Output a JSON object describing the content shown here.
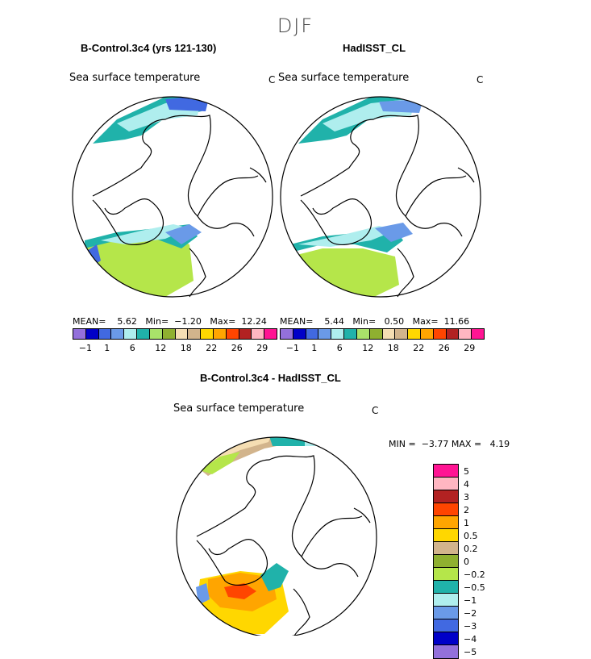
{
  "figure": {
    "season": "DJF"
  },
  "panels": [
    {
      "model": "B-Control.3c4 (yrs 121-130)",
      "var_name": "Sea surface temperature",
      "units": "C",
      "mean_label": "MEAN=",
      "mean": "5.62",
      "min_label": "Min=",
      "min": "−1.20",
      "max_label": "Max=",
      "max": "12.24"
    },
    {
      "model": "HadISST_CL",
      "var_name": "Sea surface temperature",
      "units": "C",
      "mean_label": "MEAN=",
      "mean": "5.44",
      "min_label": "Min=",
      "min": "0.50",
      "max_label": "Max=",
      "max": "11.66"
    }
  ],
  "top_colorbar": {
    "colors": [
      "#9370db",
      "#0000c8",
      "#4169e1",
      "#6a9ae8",
      "#afeeee",
      "#20b2aa",
      "#a9e26a",
      "#8fb030",
      "#f5deb3",
      "#d2b48c",
      "#ffd700",
      "#ffa500",
      "#ff4500",
      "#b22222",
      "#ffb6c1",
      "#ff1493"
    ],
    "tick_labels": [
      "−1",
      "1",
      "6",
      "12",
      "18",
      "22",
      "26",
      "29"
    ]
  },
  "diff": {
    "title": "B-Control.3c4 - HadISST_CL",
    "var_name": "Sea surface temperature",
    "units": "C",
    "min_label": "MIN =",
    "min": "−3.77",
    "max_label": "MAX =",
    "max": "4.19",
    "legend": {
      "colors": [
        "#ff1493",
        "#ffb6c1",
        "#b22222",
        "#ff4500",
        "#ffa500",
        "#ffd700",
        "#d2b48c",
        "#8fb030",
        "#b5e64a",
        "#20b2aa",
        "#afeeee",
        "#6a9ae8",
        "#4169e1",
        "#0000c8",
        "#9370db"
      ],
      "labels": [
        "5",
        "4",
        "3",
        "2",
        "1",
        "0.5",
        "0.2",
        "0",
        "−0.2",
        "−0.5",
        "−1",
        "−2",
        "−3",
        "−4",
        "−5"
      ]
    }
  },
  "chart_data": {
    "type": "map",
    "title": "DJF",
    "projection": "north polar stereographic",
    "maps": [
      {
        "name": "B-Control.3c4 (yrs 121-130)",
        "variable": "Sea surface temperature",
        "units": "C",
        "mean": 5.62,
        "min": -1.2,
        "max": 12.24,
        "contour_levels": [
          -1,
          0,
          1,
          3,
          6,
          9,
          12,
          15,
          18,
          20,
          22,
          24,
          26,
          28,
          29
        ]
      },
      {
        "name": "HadISST_CL",
        "variable": "Sea surface temperature",
        "units": "C",
        "mean": 5.44,
        "min": 0.5,
        "max": 11.66,
        "contour_levels": [
          -1,
          0,
          1,
          3,
          6,
          9,
          12,
          15,
          18,
          20,
          22,
          24,
          26,
          28,
          29
        ]
      },
      {
        "name": "B-Control.3c4 - HadISST_CL",
        "variable": "Sea surface temperature",
        "units": "C",
        "min": -3.77,
        "max": 4.19,
        "contour_levels": [
          -5,
          -4,
          -3,
          -2,
          -1,
          -0.5,
          -0.2,
          0,
          0.2,
          0.5,
          1,
          2,
          3,
          4,
          5
        ]
      }
    ]
  }
}
